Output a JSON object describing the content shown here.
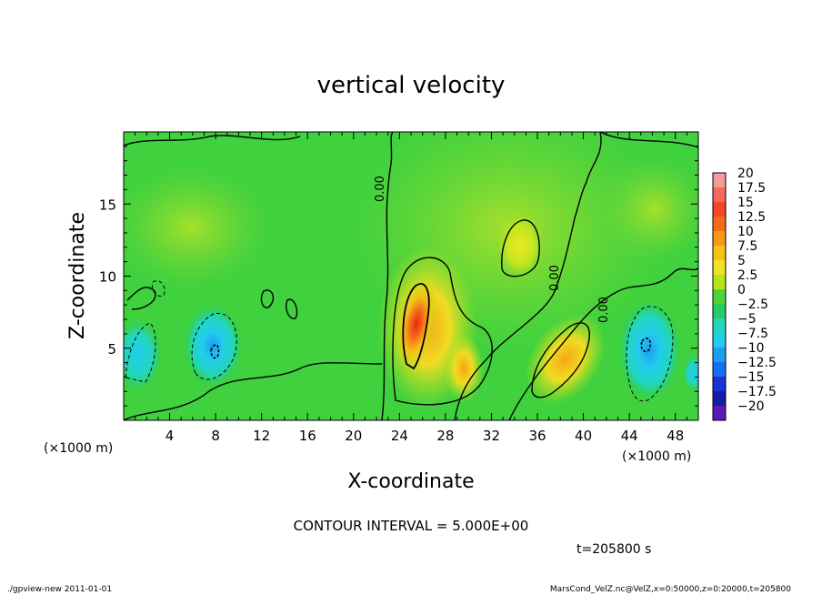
{
  "chart_data": {
    "type": "heatmap",
    "title": "vertical velocity",
    "xlabel": "X-coordinate",
    "ylabel": "Z-coordinate",
    "x_unit_left": "(×1000 m)",
    "x_unit_right": "(×1000 m)",
    "xlim": [
      0,
      50
    ],
    "ylim": [
      0,
      20
    ],
    "x_ticks": [
      "4",
      "8",
      "12",
      "16",
      "20",
      "24",
      "28",
      "32",
      "36",
      "40",
      "44",
      "48"
    ],
    "y_ticks": [
      "5",
      "10",
      "15"
    ],
    "colorbar": {
      "levels": [
        "20",
        "17.5",
        "15",
        "12.5",
        "10",
        "7.5",
        "5",
        "2.5",
        "0",
        "−2.5",
        "−5",
        "−7.5",
        "−10",
        "−12.5",
        "−15",
        "−17.5",
        "−20"
      ],
      "colors": [
        "#f59a9a",
        "#f46a5a",
        "#f5452a",
        "#f56b1a",
        "#f79a12",
        "#f5c318",
        "#eee422",
        "#b4e41c",
        "#4fd33a",
        "#26cc62",
        "#22d6bc",
        "#22cced",
        "#1c9ef2",
        "#1a6ef0",
        "#1a34d8",
        "#1a1aa8",
        "#5a1ab4"
      ]
    },
    "contour_labels": [
      "0.00",
      "0.00",
      "0.00"
    ],
    "features": [
      {
        "kind": "updraft",
        "x": 25.5,
        "z": 7.5,
        "w": 15
      },
      {
        "kind": "updraft",
        "x": 38,
        "z": 4.5,
        "w": 7.5
      },
      {
        "kind": "updraft",
        "x": 35,
        "z": 11.5,
        "w": 5
      },
      {
        "kind": "downdraft",
        "x": 8,
        "z": 5,
        "w": -7.5
      },
      {
        "kind": "downdraft",
        "x": 45.5,
        "z": 5,
        "w": -7.5
      },
      {
        "kind": "downdraft",
        "x": 1.5,
        "z": 5,
        "w": -5
      }
    ],
    "contour_interval_text": "CONTOUR INTERVAL = 5.000E+00",
    "time_text": "t=205800 s"
  },
  "footer": {
    "left": "./gpview-new  2011-01-01",
    "right": "MarsCond_VelZ.nc@VelZ,x=0:50000,z=0:20000,t=205800"
  }
}
